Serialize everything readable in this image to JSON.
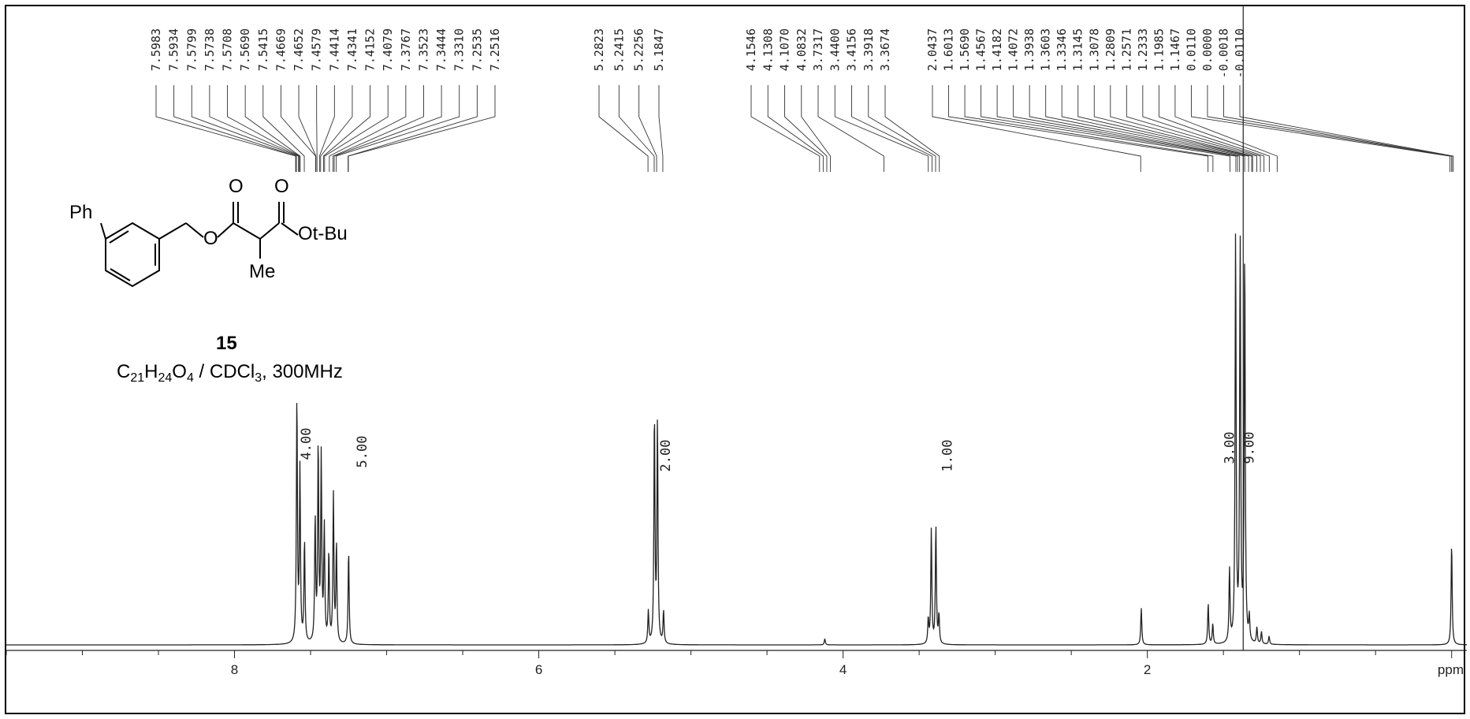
{
  "chart_data": {
    "type": "line",
    "x_unit": "ppm",
    "xlim": [
      9.5,
      -0.1
    ],
    "x_ticks": [
      8,
      6,
      4,
      2,
      0
    ],
    "x_tick_labels": [
      "8",
      "6",
      "4",
      "2",
      "ppm"
    ],
    "peak_labels": [
      "7.5983",
      "7.5934",
      "7.5799",
      "7.5738",
      "7.5708",
      "7.5690",
      "7.5415",
      "7.4669",
      "7.4652",
      "7.4579",
      "7.4414",
      "7.4341",
      "7.4152",
      "7.4079",
      "7.3767",
      "7.3523",
      "7.3444",
      "7.3310",
      "7.2535",
      "7.2516",
      "5.2823",
      "5.2415",
      "5.2256",
      "5.1847",
      "4.1546",
      "4.1308",
      "4.1070",
      "4.0832",
      "3.7317",
      "3.4400",
      "3.4156",
      "3.3918",
      "3.3674",
      "2.0437",
      "1.6013",
      "1.5690",
      "1.4567",
      "1.4182",
      "1.4072",
      "1.3938",
      "1.3603",
      "1.3346",
      "1.3145",
      "1.3078",
      "1.2809",
      "1.2571",
      "1.2333",
      "1.1985",
      "1.1467",
      "0.0110",
      "0.0000",
      "-0.0018",
      "-0.0110"
    ],
    "peaks": [
      {
        "ppm": 7.59,
        "height": 0.6
      },
      {
        "ppm": 7.57,
        "height": 0.42
      },
      {
        "ppm": 7.54,
        "height": 0.25
      },
      {
        "ppm": 7.47,
        "height": 0.3
      },
      {
        "ppm": 7.45,
        "height": 0.48
      },
      {
        "ppm": 7.43,
        "height": 0.45
      },
      {
        "ppm": 7.41,
        "height": 0.28
      },
      {
        "ppm": 7.38,
        "height": 0.22
      },
      {
        "ppm": 7.35,
        "height": 0.36
      },
      {
        "ppm": 7.33,
        "height": 0.24
      },
      {
        "ppm": 7.25,
        "height": 0.23
      },
      {
        "ppm": 5.28,
        "height": 0.08
      },
      {
        "ppm": 5.24,
        "height": 0.56
      },
      {
        "ppm": 5.22,
        "height": 0.54
      },
      {
        "ppm": 5.18,
        "height": 0.08
      },
      {
        "ppm": 4.12,
        "height": 0.015
      },
      {
        "ppm": 3.44,
        "height": 0.06
      },
      {
        "ppm": 3.42,
        "height": 0.28
      },
      {
        "ppm": 3.39,
        "height": 0.29
      },
      {
        "ppm": 3.37,
        "height": 0.07
      },
      {
        "ppm": 2.04,
        "height": 0.09
      },
      {
        "ppm": 1.6,
        "height": 0.1
      },
      {
        "ppm": 1.57,
        "height": 0.05
      },
      {
        "ppm": 1.46,
        "height": 0.18
      },
      {
        "ppm": 1.42,
        "height": 1.0
      },
      {
        "ppm": 1.39,
        "height": 0.98
      },
      {
        "ppm": 1.36,
        "height": 0.96
      },
      {
        "ppm": 1.33,
        "height": 0.06
      },
      {
        "ppm": 1.28,
        "height": 0.04
      },
      {
        "ppm": 1.25,
        "height": 0.03
      },
      {
        "ppm": 1.2,
        "height": 0.02
      },
      {
        "ppm": 0.0,
        "height": 0.25
      }
    ],
    "integrals": [
      {
        "ppm": 7.5,
        "label": "4.00"
      },
      {
        "ppm": 7.35,
        "label": "5.00"
      },
      {
        "ppm": 5.23,
        "label": "2.00"
      },
      {
        "ppm": 3.4,
        "label": "1.00"
      },
      {
        "ppm": 1.42,
        "label": "3.00"
      },
      {
        "ppm": 1.38,
        "label": "9.00"
      }
    ]
  },
  "structure": {
    "ph_label": "Ph",
    "o_ester_label": "O",
    "carbonyl1_label": "O",
    "carbonyl2_label": "O",
    "otbu_label": "Ot-Bu",
    "me_label": "Me",
    "compound_number": "15",
    "formula": {
      "c": "C",
      "c_n": "21",
      "h": "H",
      "h_n": "24",
      "o": "O",
      "o_n": "4",
      "rest": " / CDCl",
      "cl_n": "3",
      "tail": ", 300MHz"
    }
  }
}
